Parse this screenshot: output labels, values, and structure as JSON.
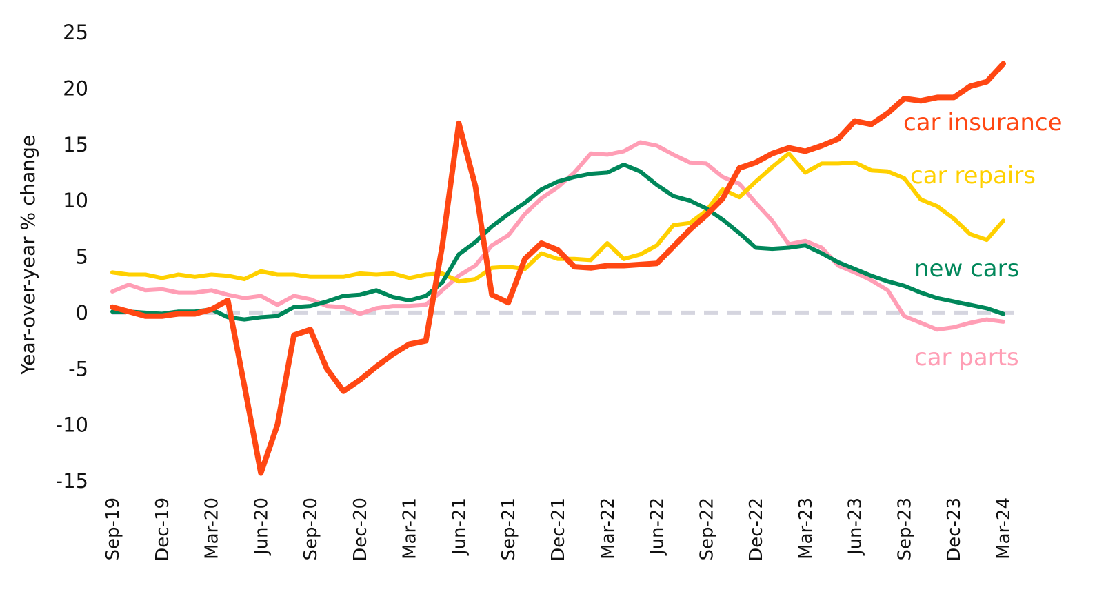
{
  "chart_data": {
    "type": "line",
    "title": "",
    "xlabel": "",
    "ylabel": "Year-over-year % change",
    "ylim": [
      -15,
      25
    ],
    "yticks": [
      25,
      20,
      15,
      10,
      5,
      0,
      -5,
      -10,
      -15
    ],
    "grid": false,
    "zero_line": {
      "style": "dashed",
      "color": "#D5D5DF"
    },
    "x": [
      "Sep-19",
      "Oct-19",
      "Nov-19",
      "Dec-19",
      "Jan-20",
      "Feb-20",
      "Mar-20",
      "Apr-20",
      "May-20",
      "Jun-20",
      "Jul-20",
      "Aug-20",
      "Sep-20",
      "Oct-20",
      "Nov-20",
      "Dec-20",
      "Jan-21",
      "Feb-21",
      "Mar-21",
      "Apr-21",
      "May-21",
      "Jun-21",
      "Jul-21",
      "Aug-21",
      "Sep-21",
      "Oct-21",
      "Nov-21",
      "Dec-21",
      "Jan-22",
      "Feb-22",
      "Mar-22",
      "Apr-22",
      "May-22",
      "Jun-22",
      "Jul-22",
      "Aug-22",
      "Sep-22",
      "Oct-22",
      "Nov-22",
      "Dec-22",
      "Jan-23",
      "Feb-23",
      "Mar-23",
      "Apr-23",
      "May-23",
      "Jun-23",
      "Jul-23",
      "Aug-23",
      "Sep-23",
      "Oct-23",
      "Nov-23",
      "Dec-23",
      "Jan-24",
      "Feb-24",
      "Mar-24"
    ],
    "xticks": [
      "Sep-19",
      "Dec-19",
      "Mar-20",
      "Jun-20",
      "Sep-20",
      "Dec-20",
      "Mar-21",
      "Jun-21",
      "Sep-21",
      "Dec-21",
      "Mar-22",
      "Jun-22",
      "Sep-22",
      "Dec-22",
      "Mar-23",
      "Jun-23",
      "Sep-23",
      "Dec-23",
      "Mar-24"
    ],
    "series": [
      {
        "name": "car insurance",
        "color": "#FF4713",
        "values": [
          0.5,
          0.1,
          -0.3,
          -0.3,
          -0.1,
          -0.1,
          0.3,
          1.1,
          -6.5,
          -14.3,
          -10,
          -2,
          -1.5,
          -5,
          -7,
          -6,
          -4.8,
          -3.7,
          -2.8,
          -2.5,
          6,
          16.9,
          11.3,
          1.6,
          0.9,
          4.8,
          6.2,
          5.6,
          4.1,
          4.0,
          4.2,
          4.2,
          4.3,
          4.4,
          5.9,
          7.4,
          8.7,
          10.2,
          12.9,
          13.4,
          14.2,
          14.7,
          14.4,
          14.9,
          15.5,
          17.1,
          16.8,
          17.8,
          19.1,
          18.9,
          19.2,
          19.2,
          20.2,
          20.6,
          22.2
        ]
      },
      {
        "name": "car repairs",
        "color": "#FFD000",
        "values": [
          3.6,
          3.4,
          3.4,
          3.1,
          3.4,
          3.2,
          3.4,
          3.3,
          3.0,
          3.7,
          3.4,
          3.4,
          3.2,
          3.2,
          3.2,
          3.5,
          3.4,
          3.5,
          3.1,
          3.4,
          3.5,
          2.8,
          3.0,
          4.0,
          4.1,
          3.9,
          5.3,
          4.8,
          4.8,
          4.7,
          6.2,
          4.8,
          5.2,
          6.0,
          7.8,
          8.0,
          9.1,
          11.0,
          10.3,
          11.7,
          13.0,
          14.2,
          12.5,
          13.3,
          13.3,
          13.4,
          12.7,
          12.6,
          12.0,
          10.1,
          9.5,
          8.4,
          7.0,
          6.5,
          8.2
        ]
      },
      {
        "name": "new cars",
        "color": "#00875A",
        "values": [
          0.1,
          0.1,
          0.0,
          -0.1,
          0.1,
          0.1,
          0.3,
          -0.4,
          -0.6,
          -0.4,
          -0.3,
          0.5,
          0.6,
          1.0,
          1.5,
          1.6,
          2.0,
          1.4,
          1.1,
          1.5,
          2.7,
          5.2,
          6.3,
          7.7,
          8.8,
          9.8,
          11.0,
          11.7,
          12.1,
          12.4,
          12.5,
          13.2,
          12.6,
          11.4,
          10.4,
          10.0,
          9.3,
          8.3,
          7.1,
          5.8,
          5.7,
          5.8,
          6.0,
          5.3,
          4.5,
          3.9,
          3.3,
          2.8,
          2.4,
          1.8,
          1.3,
          1.0,
          0.7,
          0.4,
          -0.1
        ]
      },
      {
        "name": "car parts",
        "color": "#FF9EB5",
        "values": [
          1.9,
          2.5,
          2.0,
          2.1,
          1.8,
          1.8,
          2.0,
          1.6,
          1.3,
          1.5,
          0.7,
          1.5,
          1.2,
          0.6,
          0.5,
          -0.1,
          0.4,
          0.6,
          0.6,
          0.7,
          2.0,
          3.3,
          4.2,
          6.0,
          6.9,
          8.8,
          10.2,
          11.2,
          12.5,
          14.2,
          14.1,
          14.4,
          15.2,
          14.9,
          14.1,
          13.4,
          13.3,
          12.1,
          11.5,
          9.8,
          8.2,
          6.1,
          6.4,
          5.8,
          4.2,
          3.6,
          2.9,
          2.0,
          -0.3,
          -0.9,
          -1.5,
          -1.3,
          -0.9,
          -0.6,
          -0.8
        ]
      }
    ]
  }
}
